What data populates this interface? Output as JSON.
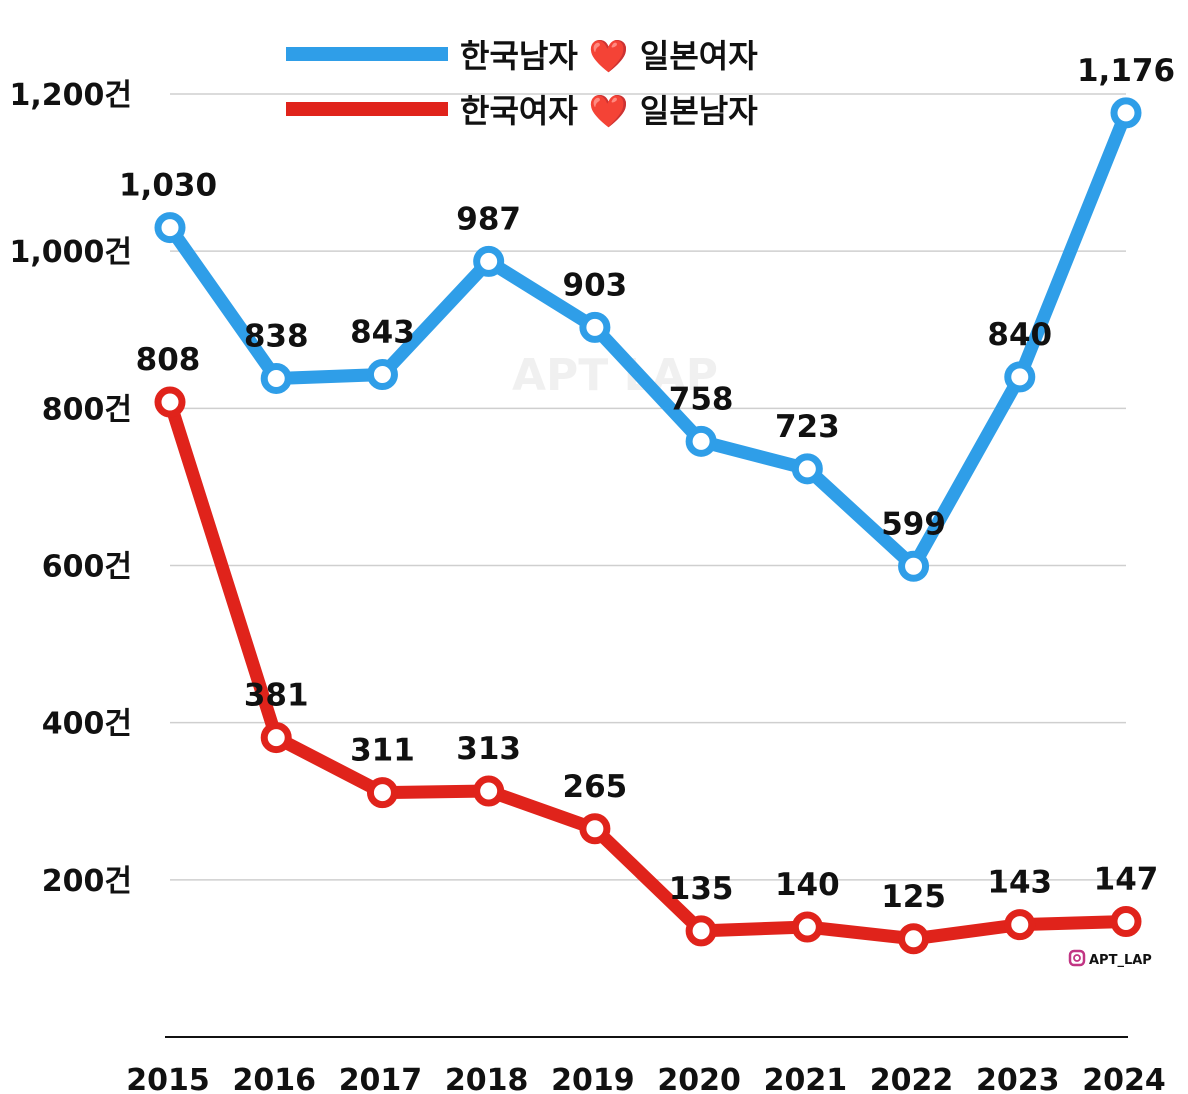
{
  "chart_data": {
    "type": "line",
    "title": "",
    "xlabel": "",
    "ylabel": "",
    "categories": [
      "2015",
      "2016",
      "2017",
      "2018",
      "2019",
      "2020",
      "2021",
      "2022",
      "2023",
      "2024"
    ],
    "ylim": [
      0,
      1200
    ],
    "yticks": [
      200,
      400,
      600,
      800,
      1000,
      1200
    ],
    "ytick_labels": [
      "200건",
      "400건",
      "600건",
      "800건",
      "1,000건",
      "1,200건"
    ],
    "grid": true,
    "legend_placement": "top-center",
    "series": [
      {
        "name": "한국남자 ❤️ 일본여자",
        "color": "#2f9ee8",
        "values": [
          1030,
          838,
          843,
          987,
          903,
          758,
          723,
          599,
          840,
          1176
        ],
        "labels": [
          "1,030",
          "838",
          "843",
          "987",
          "903",
          "758",
          "723",
          "599",
          "840",
          "1,176"
        ]
      },
      {
        "name": "한국여자 ❤️ 일본남자",
        "color": "#e0231b",
        "values": [
          808,
          381,
          311,
          313,
          265,
          135,
          140,
          125,
          143,
          147
        ],
        "labels": [
          "808",
          "381",
          "311",
          "313",
          "265",
          "135",
          "140",
          "125",
          "143",
          "147"
        ]
      }
    ],
    "watermark": "APT LAP",
    "credit": "APT_LAP",
    "credit_icon": "instagram-icon"
  }
}
